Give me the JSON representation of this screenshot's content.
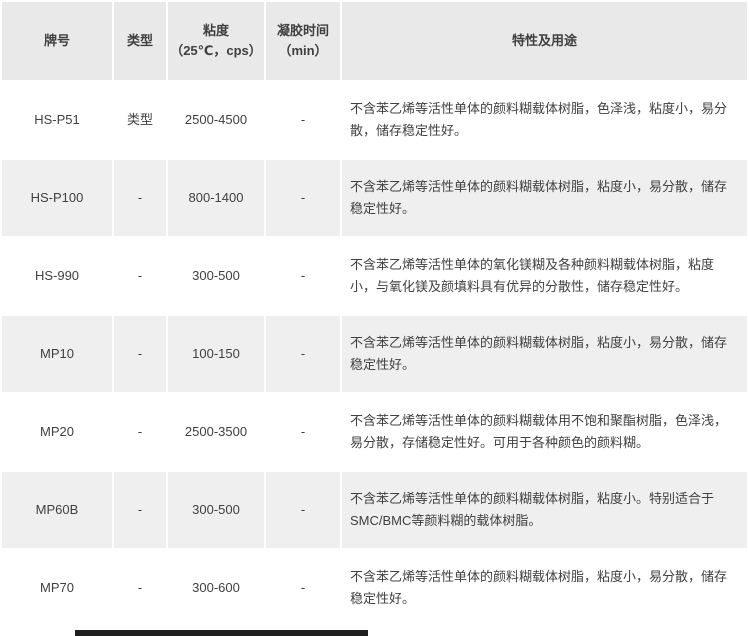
{
  "colors": {
    "header_bg": "#e9e9e9",
    "alt_row_bg": "#efefef",
    "row_bg": "#ffffff",
    "text": "#404040",
    "footer_bar": "#1f1f1f"
  },
  "table": {
    "columns": [
      {
        "key": "grade",
        "label": "牌号"
      },
      {
        "key": "type",
        "label": "类型"
      },
      {
        "key": "viscosity",
        "label": "粘度",
        "label_line2": "（25℃，cps）"
      },
      {
        "key": "gel_time",
        "label": "凝胶时间",
        "label_line2": "（min）"
      },
      {
        "key": "features",
        "label": "特性及用途"
      }
    ],
    "rows": [
      {
        "grade": "HS-P51",
        "type": "类型",
        "viscosity": "2500-4500",
        "gel_time": "-",
        "features": "不含苯乙烯等活性单体的颜料糊载体树脂，色泽浅，粘度小，易分散，储存稳定性好。"
      },
      {
        "grade": "HS-P100",
        "type": "-",
        "viscosity": "800-1400",
        "gel_time": "-",
        "features": "不含苯乙烯等活性单体的颜料糊载体树脂，粘度小，易分散，储存稳定性好。"
      },
      {
        "grade": "HS-990",
        "type": "-",
        "viscosity": "300-500",
        "gel_time": "-",
        "features": "不含苯乙烯等活性单体的氧化镁糊及各种颜料糊载体树脂，粘度小，与氧化镁及颜填料具有优异的分散性，储存稳定性好。"
      },
      {
        "grade": "MP10",
        "type": "-",
        "viscosity": "100-150",
        "gel_time": "-",
        "features": "不含苯乙烯等活性单体的颜料糊载体树脂，粘度小，易分散，储存稳定性好。"
      },
      {
        "grade": "MP20",
        "type": "-",
        "viscosity": "2500-3500",
        "gel_time": "-",
        "features": "不含苯乙烯等活性单体的颜料糊载体用不饱和聚酯树脂，色泽浅，易分散，存储稳定性好。可用于各种颜色的颜料糊。"
      },
      {
        "grade": "MP60B",
        "type": "-",
        "viscosity": "300-500",
        "gel_time": "-",
        "features": "不含苯乙烯等活性单体的颜料糊载体树脂，粘度小。特别适合于SMC/BMC等颜料糊的载体树脂。"
      },
      {
        "grade": "MP70",
        "type": "-",
        "viscosity": "300-600",
        "gel_time": "-",
        "features": "不含苯乙烯等活性单体的颜料糊载体树脂，粘度小，易分散，储存稳定性好。"
      }
    ]
  }
}
